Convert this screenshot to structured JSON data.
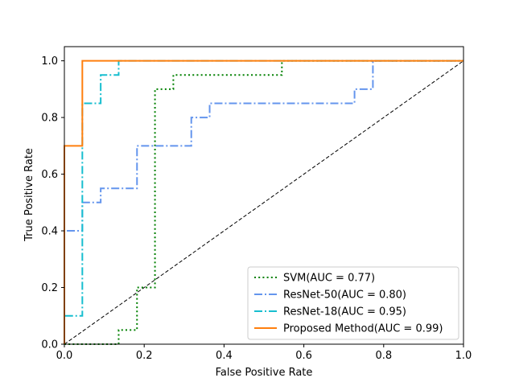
{
  "chart_data": {
    "type": "line",
    "title": "",
    "xlabel": "False Positive Rate",
    "ylabel": "True Positive Rate",
    "xlim": [
      0.0,
      1.0
    ],
    "ylim": [
      0.0,
      1.05
    ],
    "xticks": [
      0.0,
      0.2,
      0.4,
      0.6,
      0.8,
      1.0
    ],
    "yticks": [
      0.0,
      0.2,
      0.4,
      0.6,
      0.8,
      1.0
    ],
    "xtick_labels": [
      "0.0",
      "0.2",
      "0.4",
      "0.6",
      "0.8",
      "1.0"
    ],
    "ytick_labels": [
      "0.0",
      "0.2",
      "0.4",
      "0.6",
      "0.8",
      "1.0"
    ],
    "grid": false,
    "legend_position": "bottom-right",
    "diagonal": {
      "x": [
        0,
        1
      ],
      "y": [
        0,
        1
      ],
      "color": "#000000",
      "style": "dashed"
    },
    "series": [
      {
        "name": "SVM(AUC = 0.77)",
        "color": "#008000",
        "style": "dotted",
        "x": [
          0.0,
          0.136,
          0.136,
          0.182,
          0.182,
          0.227,
          0.227,
          0.227,
          0.273,
          0.273,
          0.545,
          0.545,
          1.0
        ],
        "y": [
          0.0,
          0.0,
          0.05,
          0.05,
          0.2,
          0.2,
          0.9,
          0.9,
          0.9,
          0.95,
          0.95,
          1.0,
          1.0
        ]
      },
      {
        "name": "ResNet-50(AUC = 0.80)",
        "color": "#6495ED",
        "style": "dashdot",
        "x": [
          0.0,
          0.0,
          0.045,
          0.045,
          0.091,
          0.091,
          0.182,
          0.182,
          0.318,
          0.318,
          0.364,
          0.364,
          0.727,
          0.727,
          0.773,
          0.773,
          1.0
        ],
        "y": [
          0.0,
          0.4,
          0.4,
          0.5,
          0.5,
          0.55,
          0.55,
          0.7,
          0.7,
          0.8,
          0.8,
          0.85,
          0.85,
          0.9,
          0.9,
          1.0,
          1.0
        ]
      },
      {
        "name": "ResNet-18(AUC = 0.95)",
        "color": "#17BECF",
        "style": "dashdot",
        "x": [
          0.0,
          0.0,
          0.045,
          0.045,
          0.091,
          0.091,
          0.136,
          0.136,
          1.0
        ],
        "y": [
          0.0,
          0.1,
          0.1,
          0.85,
          0.85,
          0.95,
          0.95,
          1.0,
          1.0
        ]
      },
      {
        "name": "Proposed Method(AUC = 0.99)",
        "color": "#FF7F0E",
        "style": "solid",
        "x": [
          0.0,
          0.0,
          0.045,
          0.045,
          1.0
        ],
        "y": [
          0.0,
          0.7,
          0.7,
          1.0,
          1.0
        ]
      }
    ]
  }
}
